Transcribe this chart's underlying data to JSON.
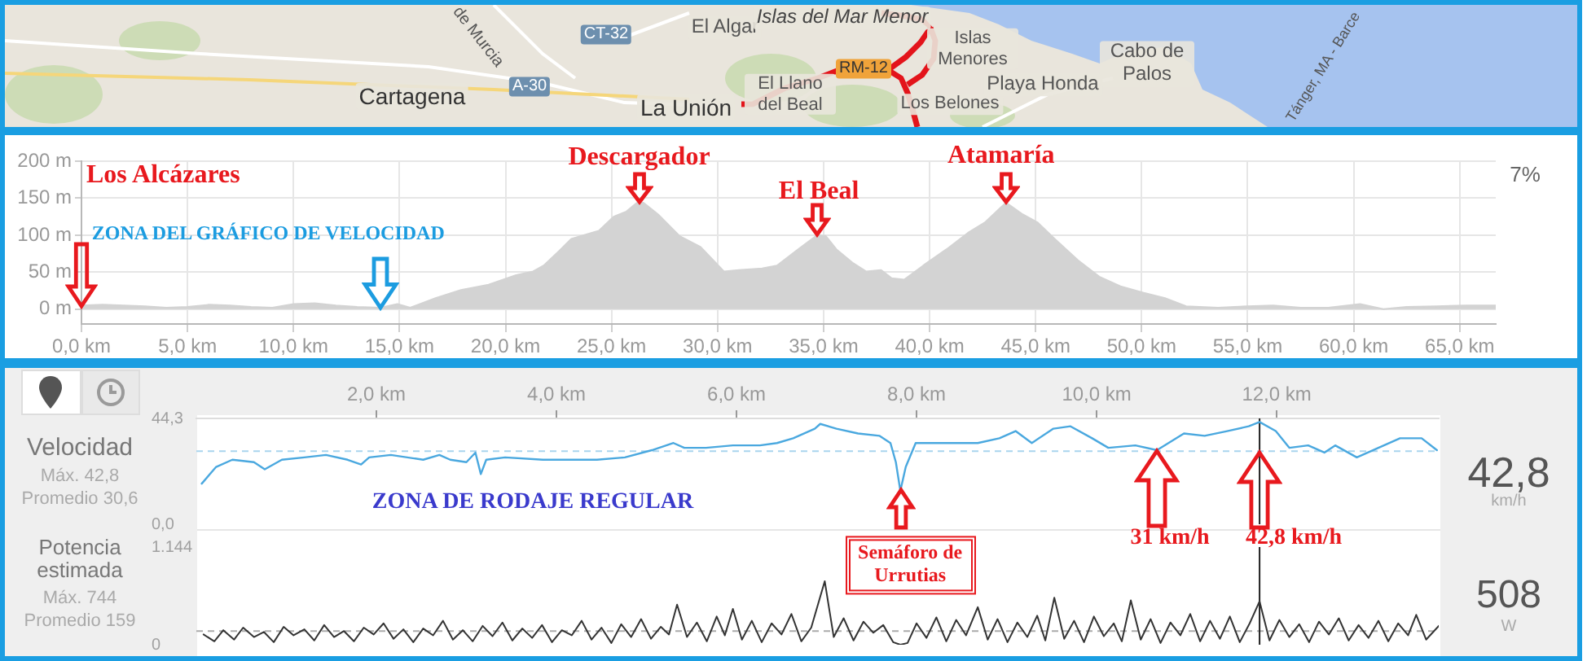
{
  "chart_data": [
    {
      "type": "other",
      "annotations": [
        "Cartagena",
        "La Unión",
        "El Algar",
        "Islas del Mar Menor",
        "Islas Menores",
        "El Llano del Beal",
        "Los Belones",
        "Playa Honda",
        "Cabo de Palos",
        "CT-32",
        "A-30",
        "RM-12",
        "de Murcia",
        "Tánger, MA - Barce"
      ]
    },
    {
      "type": "area",
      "color": "#d3d3d3",
      "grid": true,
      "xlim": [
        0,
        66.7
      ],
      "ylim": [
        -20,
        200
      ],
      "xticks": [
        {
          "value": 0,
          "label": "0,0 km"
        },
        {
          "value": 5,
          "label": "5,0 km"
        },
        {
          "value": 10,
          "label": "10,0 km"
        },
        {
          "value": 15,
          "label": "15,0 km"
        },
        {
          "value": 20,
          "label": "20,0 km"
        },
        {
          "value": 25,
          "label": "25,0 km"
        },
        {
          "value": 30,
          "label": "30,0 km"
        },
        {
          "value": 35,
          "label": "35,0 km"
        },
        {
          "value": 40,
          "label": "40,0 km"
        },
        {
          "value": 45,
          "label": "45,0 km"
        },
        {
          "value": 50,
          "label": "50,0 km"
        },
        {
          "value": 55,
          "label": "55,0 km"
        },
        {
          "value": 60,
          "label": "60,0 km"
        },
        {
          "value": 65,
          "label": "65,0 km"
        }
      ],
      "yticks": [
        {
          "value": 0,
          "label": "0 m"
        },
        {
          "value": 50,
          "label": "50 m"
        },
        {
          "value": 100,
          "label": "100 m"
        },
        {
          "value": 150,
          "label": "150 m"
        },
        {
          "value": 200,
          "label": "200 m"
        }
      ],
      "x": [
        0,
        1,
        2,
        3,
        4,
        5,
        6,
        7,
        8,
        9,
        10,
        11,
        12,
        13,
        14.1,
        14.9,
        15.5,
        16.7,
        17.9,
        19.2,
        20.5,
        21.3,
        21.8,
        22.5,
        23.1,
        24.4,
        25.1,
        25.7,
        26.2,
        26.5,
        27.2,
        28.2,
        29.2,
        30.3,
        31.0,
        32.1,
        32.8,
        33.8,
        34.7,
        35.1,
        35.6,
        36.4,
        37.0,
        37.7,
        38.2,
        38.8,
        39.7,
        40.8,
        41.8,
        42.6,
        43.6,
        44.4,
        45.1,
        45.9,
        47.0,
        48.0,
        49.0,
        50.1,
        51.1,
        52.1,
        53.6,
        55.0,
        56.2,
        57.5,
        58.8,
        60.3,
        61.4,
        62.5,
        63.9,
        65.3,
        66.7
      ],
      "values": [
        5,
        6,
        5,
        4,
        2,
        3,
        6,
        5,
        3,
        2,
        7,
        8,
        5,
        3,
        2,
        7,
        2,
        15,
        26,
        33,
        46,
        51,
        59,
        78,
        95,
        106,
        125,
        132,
        144,
        144,
        128,
        99,
        84,
        51,
        53,
        55,
        59,
        81,
        100,
        99,
        81,
        62,
        51,
        53,
        42,
        40,
        59,
        81,
        103,
        117,
        144,
        128,
        117,
        95,
        66,
        44,
        31,
        22,
        15,
        4,
        2,
        4,
        5,
        2,
        2,
        7,
        0,
        3,
        4,
        5,
        5
      ],
      "annotations": [
        "Los Alcázares",
        {
          "text": "Descargador",
          "x": 26.3,
          "y": 144
        },
        {
          "text": "El Beal",
          "x": 34.7,
          "y": 100
        },
        {
          "text": "Atamaría",
          "x": 43.6,
          "y": 144
        },
        "ZONA DEL GRÁFICO DE VELOCIDAD",
        "7%"
      ]
    },
    {
      "type": "line",
      "color": "#4aa8df",
      "ylabel": "Velocidad",
      "xlim": [
        0,
        13.8
      ],
      "ylim": [
        0,
        44.3
      ],
      "xticks": [
        {
          "value": 2,
          "label": "2,0 km"
        },
        {
          "value": 4,
          "label": "4,0 km"
        },
        {
          "value": 6,
          "label": "6,0 km"
        },
        {
          "value": 8,
          "label": "8,0 km"
        },
        {
          "value": 10,
          "label": "10,0 km"
        },
        {
          "value": 12,
          "label": "12,0 km"
        }
      ],
      "yticks": [
        {
          "value": 0,
          "label": "0,0"
        },
        {
          "value": 44.3,
          "label": "44,3"
        }
      ],
      "x": [
        0.06,
        0.22,
        0.4,
        0.64,
        0.76,
        0.95,
        1.2,
        1.44,
        1.68,
        1.83,
        1.92,
        2.16,
        2.52,
        2.7,
        2.82,
        3.0,
        3.1,
        3.16,
        3.22,
        3.43,
        3.85,
        4.15,
        4.45,
        4.76,
        5.06,
        5.3,
        5.42,
        5.66,
        5.96,
        6.26,
        6.45,
        6.63,
        6.87,
        6.93,
        7.11,
        7.35,
        7.59,
        7.71,
        7.77,
        7.82,
        7.88,
        7.99,
        8.32,
        8.68,
        8.92,
        9.1,
        9.28,
        9.52,
        9.71,
        9.95,
        10.13,
        10.43,
        10.67,
        10.97,
        11.2,
        11.45,
        11.69,
        11.81,
        11.99,
        12.14,
        12.35,
        12.53,
        12.65,
        12.89,
        13.13,
        13.37,
        13.61,
        13.78
      ],
      "values": [
        17,
        24,
        27,
        26,
        23,
        27,
        28,
        29,
        27,
        25,
        28,
        29,
        27,
        29,
        27,
        26,
        30,
        21,
        27,
        28,
        27,
        27,
        27,
        28,
        31,
        34,
        32,
        32,
        33,
        33,
        34,
        36,
        40,
        42,
        40,
        38,
        37,
        34,
        26,
        14,
        24,
        34,
        34,
        34,
        36,
        39,
        34,
        40,
        41,
        36,
        32,
        33,
        31,
        38,
        37,
        39,
        41,
        42.8,
        39,
        32,
        33,
        30,
        33,
        28,
        32,
        36,
        36,
        31
      ],
      "ref_lines": [
        {
          "axis": "y",
          "value": 30.6,
          "color": "#a9d5ee",
          "line_style": "dashed"
        },
        {
          "axis": "x",
          "value": 11.81,
          "color": "#222222"
        }
      ],
      "annotations": [
        "Máx. 42,8",
        "Promedio 30,6",
        "42,8",
        "km/h",
        "ZONA DE RODAJE REGULAR",
        {
          "text": "Semáforo de Urrutias",
          "x": 7.82,
          "y": 14
        },
        "31 km/h",
        "42,8 km/h"
      ]
    },
    {
      "type": "line",
      "color": "#333333",
      "ylabel": "Potencia estimada",
      "tick_labels": "y",
      "xlim": [
        0,
        13.8
      ],
      "ylim": [
        0,
        1144
      ],
      "yticks": [
        0,
        {
          "value": 1144,
          "label": "1.144"
        }
      ],
      "x": [
        0.08,
        0.2,
        0.3,
        0.42,
        0.52,
        0.64,
        0.75,
        0.86,
        0.97,
        1.08,
        1.2,
        1.31,
        1.42,
        1.53,
        1.64,
        1.75,
        1.86,
        1.97,
        2.08,
        2.19,
        2.3,
        2.41,
        2.52,
        2.63,
        2.74,
        2.85,
        2.96,
        3.07,
        3.18,
        3.29,
        3.4,
        3.51,
        3.62,
        3.73,
        3.84,
        3.95,
        4.06,
        4.17,
        4.28,
        4.39,
        4.5,
        4.61,
        4.72,
        4.83,
        4.94,
        5.05,
        5.16,
        5.25,
        5.34,
        5.45,
        5.56,
        5.67,
        5.78,
        5.87,
        5.96,
        6.06,
        6.17,
        6.28,
        6.39,
        6.5,
        6.61,
        6.72,
        6.83,
        6.98,
        7.08,
        7.19,
        7.3,
        7.41,
        7.52,
        7.63,
        7.74,
        7.82,
        7.9,
        8.0,
        8.11,
        8.22,
        8.33,
        8.44,
        8.55,
        8.68,
        8.79,
        8.9,
        9.01,
        9.12,
        9.23,
        9.34,
        9.43,
        9.53,
        9.64,
        9.75,
        9.86,
        9.97,
        10.08,
        10.19,
        10.28,
        10.38,
        10.49,
        10.6,
        10.71,
        10.82,
        10.93,
        11.04,
        11.15,
        11.26,
        11.37,
        11.48,
        11.59,
        11.7,
        11.81,
        11.92,
        12.03,
        12.14,
        12.25,
        12.36,
        12.47,
        12.58,
        12.69,
        12.8,
        12.91,
        13.02,
        13.13,
        13.24,
        13.35,
        13.46,
        13.55,
        13.66,
        13.8
      ],
      "values": [
        120,
        40,
        170,
        60,
        200,
        90,
        150,
        30,
        210,
        110,
        180,
        50,
        230,
        90,
        160,
        40,
        200,
        120,
        250,
        70,
        180,
        30,
        190,
        110,
        280,
        60,
        170,
        40,
        220,
        100,
        260,
        50,
        190,
        80,
        230,
        30,
        170,
        110,
        280,
        60,
        200,
        20,
        240,
        90,
        300,
        70,
        210,
        120,
        470,
        90,
        260,
        40,
        330,
        110,
        420,
        60,
        280,
        30,
        250,
        120,
        360,
        40,
        200,
        744,
        90,
        310,
        50,
        270,
        140,
        230,
        30,
        0,
        20,
        250,
        80,
        320,
        40,
        290,
        110,
        440,
        60,
        300,
        30,
        260,
        90,
        340,
        50,
        550,
        70,
        280,
        30,
        330,
        100,
        250,
        40,
        520,
        60,
        300,
        20,
        260,
        110,
        360,
        40,
        280,
        70,
        330,
        30,
        250,
        508,
        50,
        290,
        90,
        240,
        30,
        270,
        120,
        310,
        50,
        230,
        80,
        280,
        40,
        250,
        110,
        350,
        60,
        220
      ],
      "ref_lines": [
        {
          "axis": "y",
          "value": 159,
          "color": "#aaaaaa",
          "line_style": "dashed"
        },
        {
          "axis": "x",
          "value": 11.81,
          "color": "#222222"
        }
      ],
      "annotations": [
        "Máx. 744",
        "Promedio 159",
        "508",
        "W"
      ]
    }
  ]
}
